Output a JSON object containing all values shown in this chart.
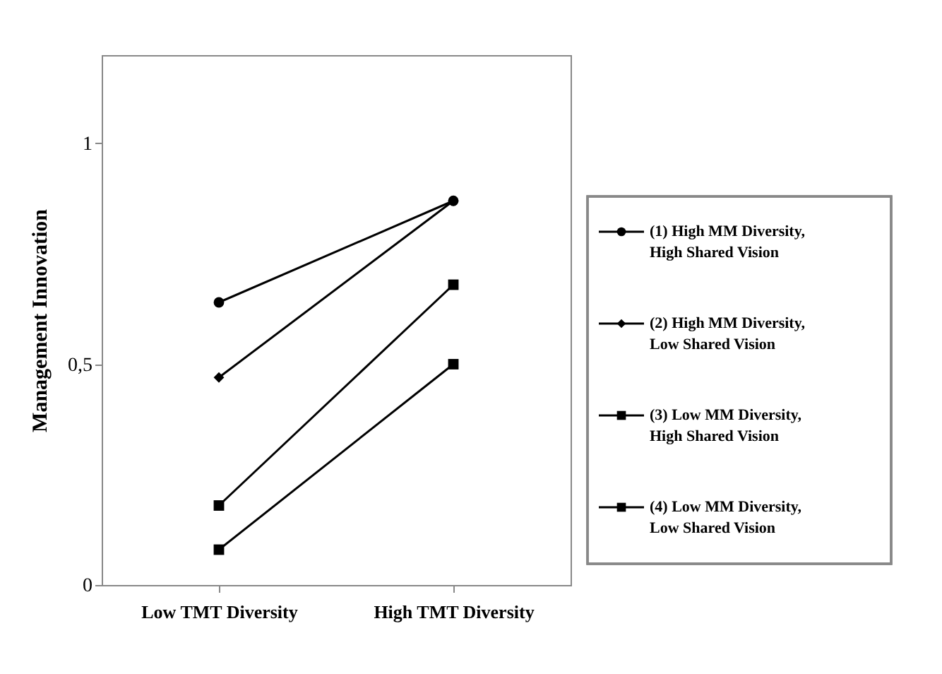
{
  "chart_data": {
    "type": "line",
    "ylabel": "Management Innovation",
    "categories": [
      "Low TMT Diversity",
      "High TMT Diversity"
    ],
    "series": [
      {
        "name": "(1) High MM Diversity, High Shared Vision",
        "color": "#000000",
        "marker": "circle",
        "values": [
          0.64,
          0.87
        ]
      },
      {
        "name": "(2) High MM Diversity, Low Shared Vision",
        "color": "#000000",
        "marker": "diamond",
        "values": [
          0.47,
          0.87
        ]
      },
      {
        "name": "(3) Low MM Diversity, High Shared Vision",
        "color": "#000000",
        "marker": "square",
        "values": [
          0.18,
          0.68
        ]
      },
      {
        "name": "(4) Low MM Diversity, Low Shared Vision",
        "color": "#000000",
        "marker": "square",
        "values": [
          0.08,
          0.5
        ]
      }
    ],
    "ylim": [
      0,
      1.2
    ],
    "yticks": [
      0,
      {
        "value": 0.5,
        "label": "0,5"
      },
      1
    ],
    "grid": false,
    "legend": "right",
    "line_style": "solid"
  }
}
